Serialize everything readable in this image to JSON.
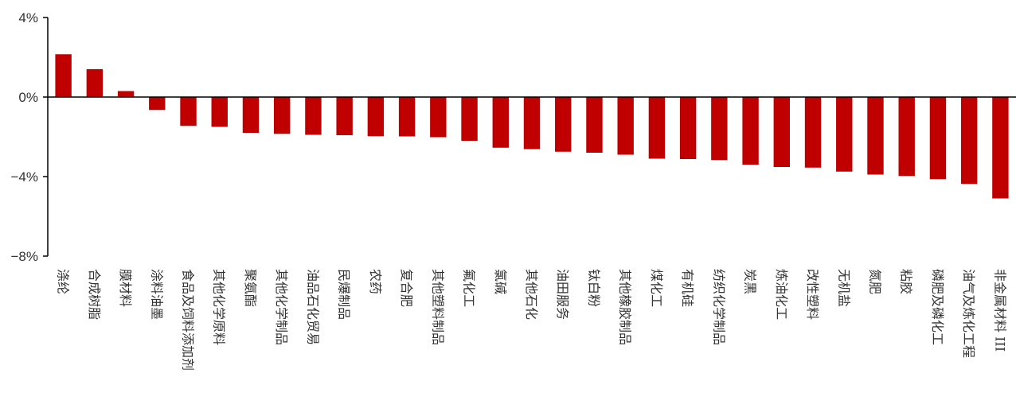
{
  "chart_data": {
    "type": "bar",
    "title": "",
    "xlabel": "",
    "ylabel": "",
    "ylim": [
      -8,
      4
    ],
    "yticks": [
      {
        "value": 4,
        "label": "4%"
      },
      {
        "value": 0,
        "label": "0%"
      },
      {
        "value": -4,
        "label": "-4%"
      },
      {
        "value": -8,
        "label": "-8%"
      }
    ],
    "grid": false,
    "legend": "none",
    "bar_color": "#C00000",
    "axis_color": "#000000",
    "categories": [
      "涤纶",
      "合成树脂",
      "膜材料",
      "涂料油墨",
      "食品及饲料添加剂",
      "其他化学原料",
      "聚氨酯",
      "其他化学制品",
      "油品石化贸易",
      "民爆制品",
      "农药",
      "复合肥",
      "其他塑料制品",
      "氟化工",
      "氯碱",
      "其他石化",
      "油田服务",
      "钛白粉",
      "其他橡胶制品",
      "煤化工",
      "有机硅",
      "纺织化学制品",
      "炭黑",
      "炼油化工",
      "改性塑料",
      "无机盐",
      "氮肥",
      "粘胶",
      "磷肥及磷化工",
      "油气及炼化工程",
      "非金属材料 III"
    ],
    "values": [
      2.15,
      1.4,
      0.3,
      -0.65,
      -1.45,
      -1.5,
      -1.8,
      -1.85,
      -1.9,
      -1.92,
      -1.97,
      -1.98,
      -2.02,
      -2.2,
      -2.55,
      -2.62,
      -2.75,
      -2.8,
      -2.9,
      -3.1,
      -3.12,
      -3.17,
      -3.4,
      -3.52,
      -3.55,
      -3.75,
      -3.9,
      -3.97,
      -4.13,
      -4.37,
      -5.1
    ]
  }
}
